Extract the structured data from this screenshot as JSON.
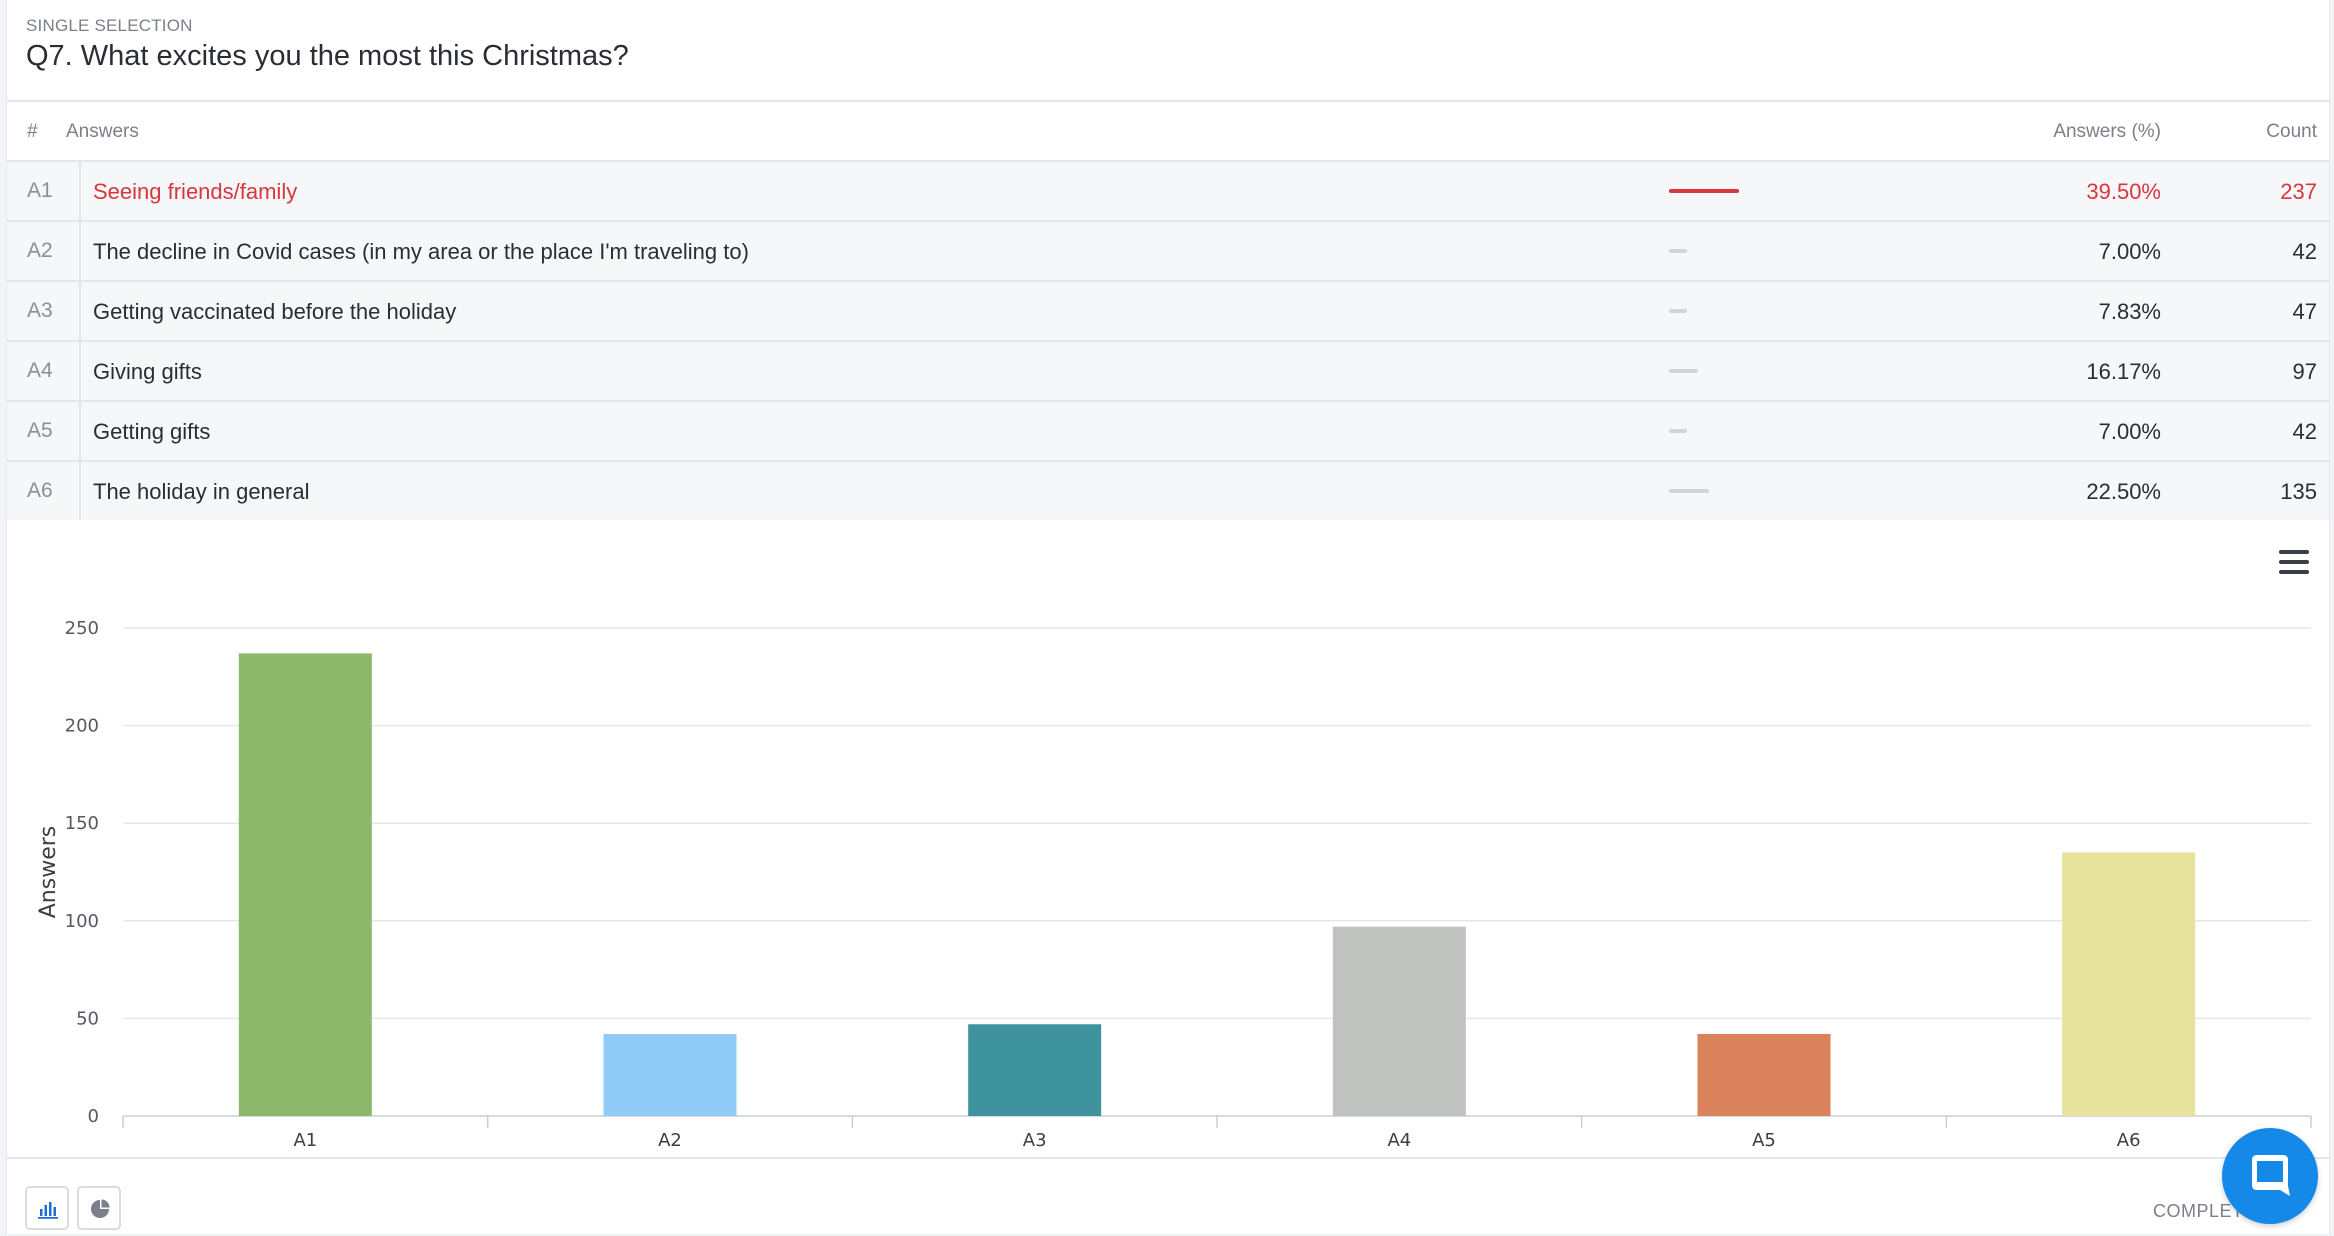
{
  "question": {
    "type_label": "SINGLE SELECTION",
    "title": "Q7. What excites you the most this Christmas?"
  },
  "table": {
    "headers": {
      "num": "#",
      "answers": "Answers",
      "percent": "Answers (%)",
      "count": "Count"
    },
    "rows": [
      {
        "id": "A1",
        "text": "Seeing friends/family",
        "percent": "39.50%",
        "count": "237",
        "share": 0.395,
        "highlight": true
      },
      {
        "id": "A2",
        "text": "The decline in Covid cases (in my area or the place I'm traveling to)",
        "percent": "7.00%",
        "count": "42",
        "share": 0.07,
        "highlight": false
      },
      {
        "id": "A3",
        "text": "Getting vaccinated before the holiday",
        "percent": "7.83%",
        "count": "47",
        "share": 0.0783,
        "highlight": false
      },
      {
        "id": "A4",
        "text": "Giving gifts",
        "percent": "16.17%",
        "count": "97",
        "share": 0.1617,
        "highlight": false
      },
      {
        "id": "A5",
        "text": "Getting gifts",
        "percent": "7.00%",
        "count": "42",
        "share": 0.07,
        "highlight": false
      },
      {
        "id": "A6",
        "text": "The holiday in general",
        "percent": "22.50%",
        "count": "135",
        "share": 0.225,
        "highlight": false
      }
    ]
  },
  "chart_data": {
    "type": "bar",
    "categories": [
      "A1",
      "A2",
      "A3",
      "A4",
      "A5",
      "A6"
    ],
    "values": [
      237,
      42,
      47,
      97,
      42,
      135
    ],
    "colors": [
      "#8cb86b",
      "#90cbf8",
      "#3e939e",
      "#bfc2be",
      "#d9825b",
      "#e6e39d"
    ],
    "ylabel": "Answers",
    "ylim": [
      0,
      250
    ],
    "yticks": [
      0,
      50,
      100,
      150,
      200,
      250
    ],
    "grid": true
  },
  "footer": {
    "complete_label": "COMPLETE",
    "bar_chart_icon": "bar-chart-icon",
    "pie_chart_icon": "pie-chart-icon"
  },
  "colors": {
    "highlight": "#d9363e",
    "chat": "#1589e8"
  }
}
